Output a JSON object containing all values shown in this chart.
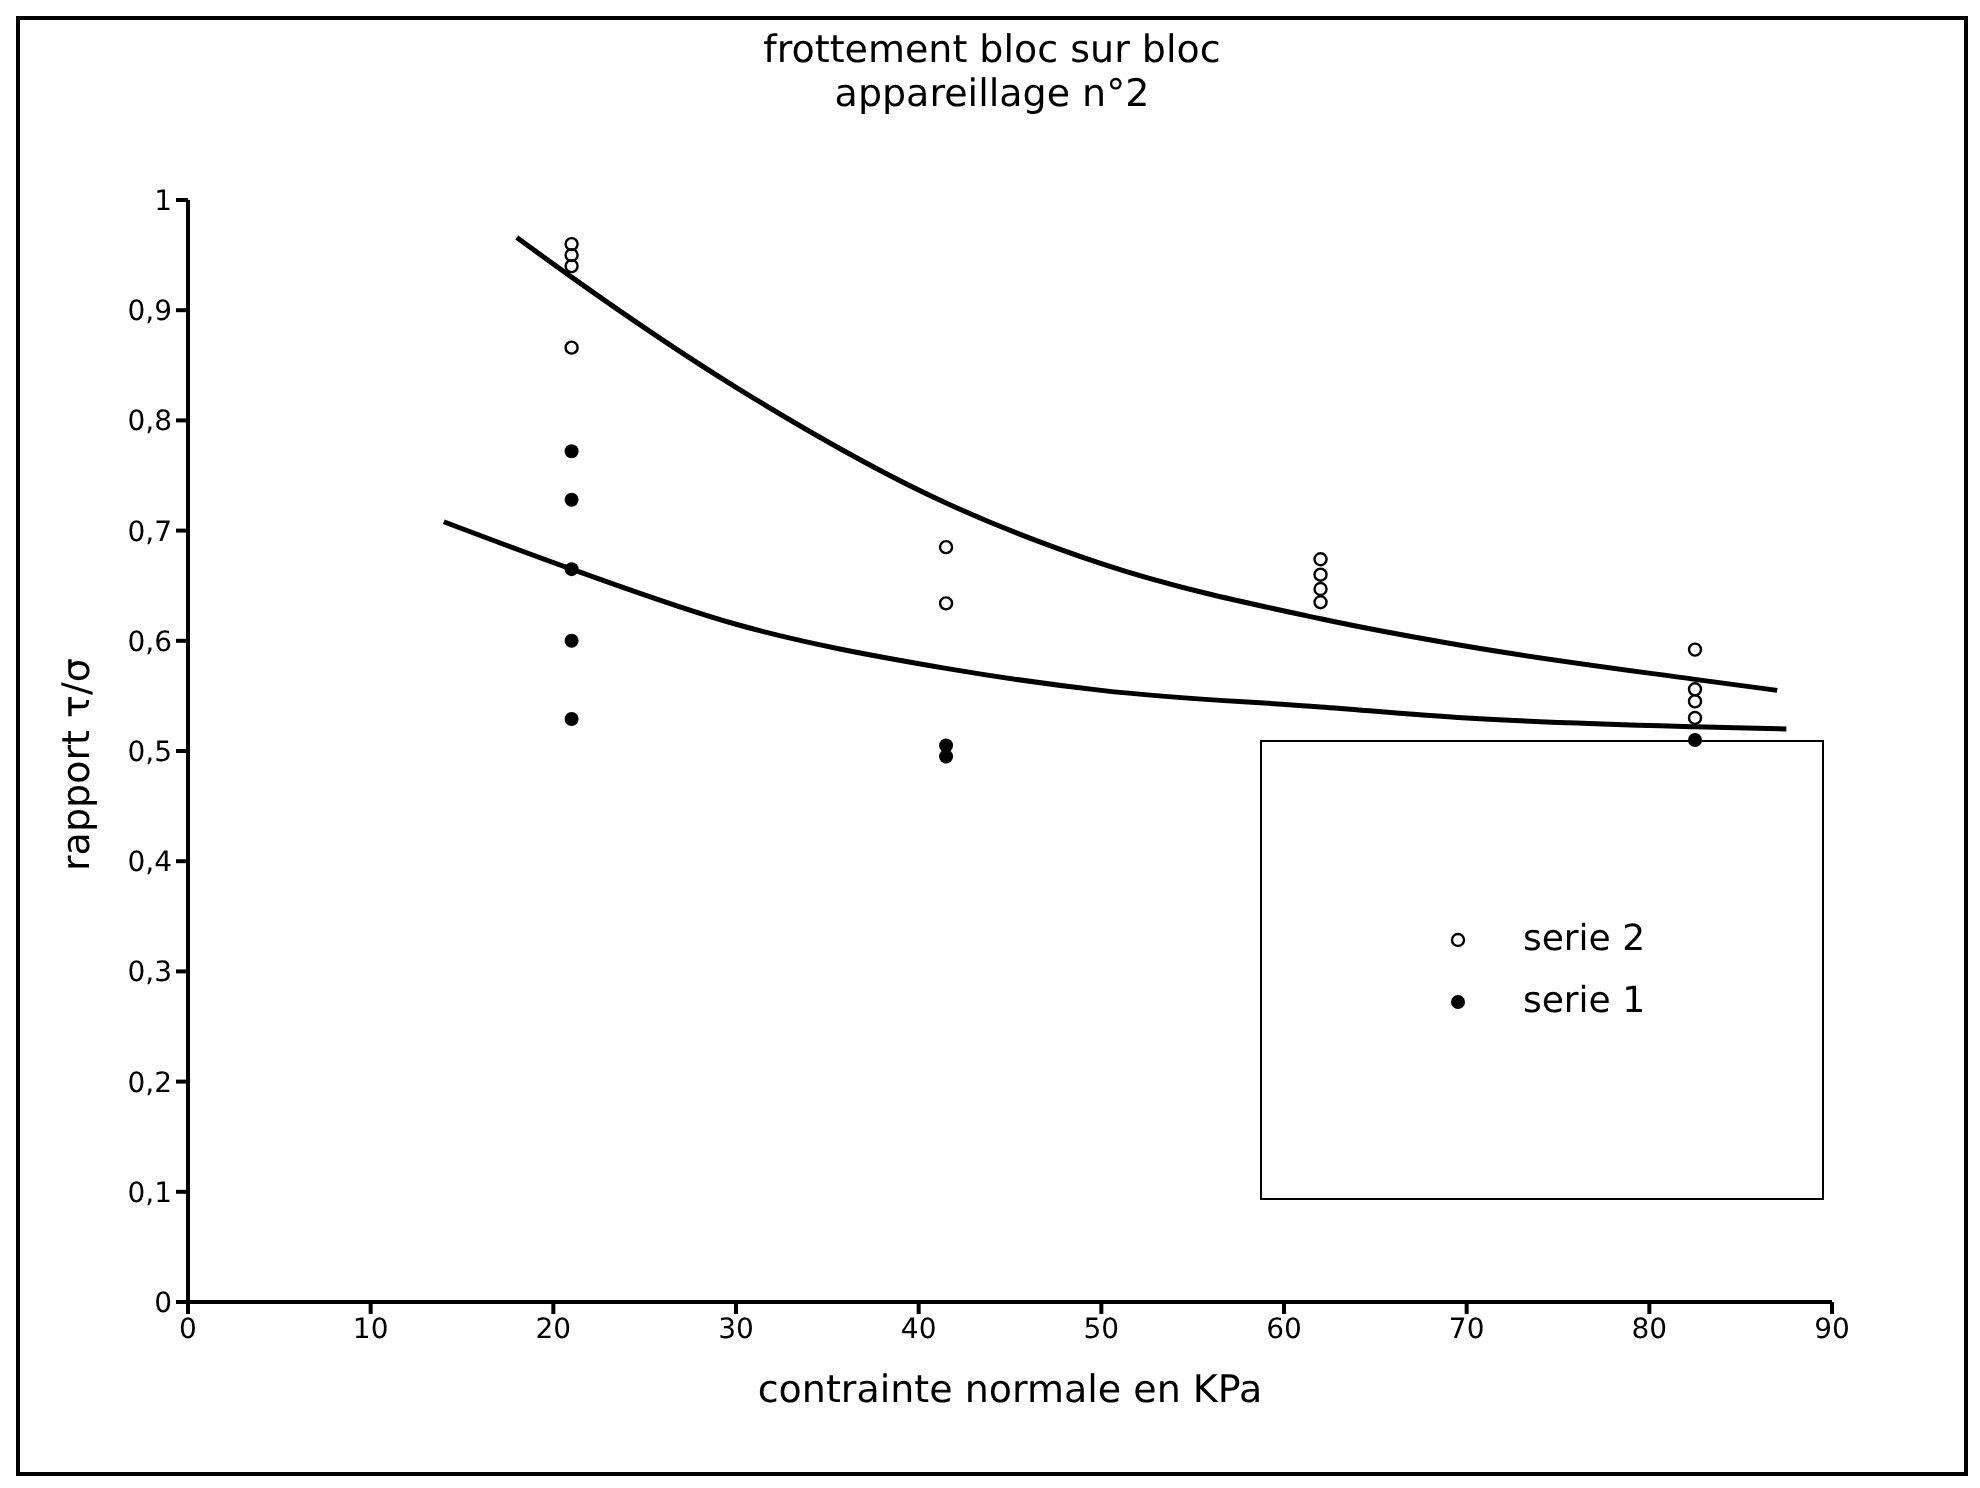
{
  "chart_data": {
    "type": "scatter",
    "title": "frottement bloc sur bloc",
    "subtitle": "appareillage n°2",
    "xlabel": "contrainte normale en KPa",
    "ylabel": "rapport τ/σ",
    "xlim": [
      0,
      90
    ],
    "xticks": [
      0,
      10,
      20,
      30,
      40,
      50,
      60,
      70,
      80,
      90
    ],
    "ylim": [
      0,
      1
    ],
    "yticks": [
      0,
      {
        "value": 0.1,
        "label": "0,1"
      },
      {
        "value": 0.2,
        "label": "0,2"
      },
      {
        "value": 0.3,
        "label": "0,3"
      },
      {
        "value": 0.4,
        "label": "0,4"
      },
      {
        "value": 0.5,
        "label": "0,5"
      },
      {
        "value": 0.6,
        "label": "0,6"
      },
      {
        "value": 0.7,
        "label": "0,7"
      },
      {
        "value": 0.8,
        "label": "0,8"
      },
      {
        "value": 0.9,
        "label": "0,9"
      },
      1
    ],
    "grid": false,
    "legend": "bottom right",
    "series": [
      {
        "name": "serie 2",
        "color": "#000000",
        "marker": "circle",
        "x": [
          21,
          21,
          21,
          21,
          41.5,
          41.5,
          62,
          62,
          62,
          62,
          82.5,
          82.5,
          82.5,
          82.5
        ],
        "values": [
          0.96,
          0.95,
          0.94,
          0.866,
          0.685,
          0.634,
          0.674,
          0.66,
          0.647,
          0.635,
          0.592,
          0.556,
          0.545,
          0.53
        ]
      },
      {
        "name": "serie 1",
        "color": "#000000",
        "marker": "circle",
        "x": [
          21,
          21,
          21,
          21,
          21,
          41.5,
          41.5,
          82.5
        ],
        "values": [
          0.772,
          0.728,
          0.665,
          0.6,
          0.529,
          0.505,
          0.495,
          0.51
        ]
      },
      {
        "type": "line",
        "color": "#000000",
        "marker": "none",
        "x": [
          18,
          21,
          30,
          41.5,
          50,
          62,
          70,
          82.5,
          87
        ],
        "values": [
          0.966,
          0.93,
          0.83,
          0.725,
          0.67,
          0.62,
          0.595,
          0.565,
          0.555
        ]
      },
      {
        "type": "line",
        "color": "#000000",
        "marker": "none",
        "x": [
          14,
          21,
          30,
          41.5,
          50,
          62,
          70,
          82.5,
          87.5
        ],
        "values": [
          0.708,
          0.665,
          0.615,
          0.575,
          0.555,
          0.54,
          0.53,
          0.522,
          0.52
        ]
      }
    ]
  }
}
